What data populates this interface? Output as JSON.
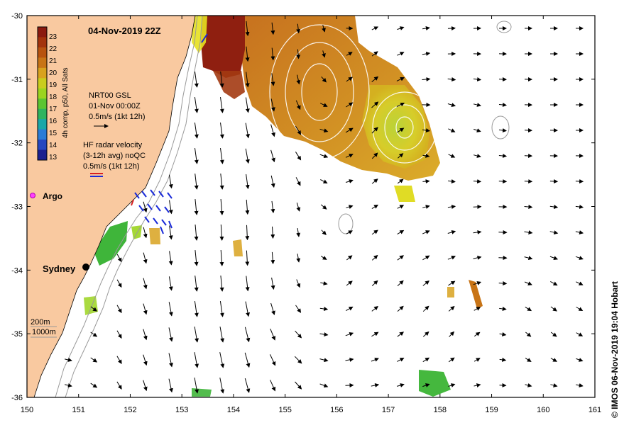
{
  "map": {
    "title": "04-Nov-2019 22Z",
    "credit": "© IMOS 06-Nov-2019 19:04 Hobart",
    "x_ticks": [
      "150",
      "151",
      "152",
      "153",
      "154",
      "155",
      "156",
      "157",
      "158",
      "159",
      "160",
      "161"
    ],
    "y_ticks": [
      "-30",
      "-31",
      "-32",
      "-33",
      "-34",
      "-35",
      "-36"
    ],
    "lon_range": [
      150,
      161
    ],
    "lat_range": [
      -36,
      -30
    ],
    "colors": {
      "land": "#f9c9a0",
      "ocean": "#ffffff",
      "frame": "#000000",
      "isobath": "#999999"
    }
  },
  "colorbar": {
    "label": "4h comp, p50, All Sats",
    "ticks": [
      "23",
      "22",
      "21",
      "20",
      "19",
      "18",
      "17",
      "16",
      "15",
      "14",
      "13"
    ],
    "colors": [
      "#8b1a0f",
      "#a3330c",
      "#b8530f",
      "#c87416",
      "#d8a21e",
      "#c9cc1d",
      "#9bd41f",
      "#5cc532",
      "#2fb35f",
      "#1aa7a8",
      "#2a7bd6",
      "#2547c0",
      "#1a1f8f"
    ]
  },
  "legend": {
    "gsl_title": "NRT00 GSL",
    "gsl_date": "01-Nov 00:00Z",
    "gsl_scale": "0.5m/s (1kt 12h)",
    "hf_title": "HF radar velocity",
    "hf_sub": "(3-12h avg) noQC",
    "hf_scale": "0.5m/s (1kt 12h)",
    "argo": "Argo",
    "isobath_200": "200m",
    "isobath_1000": "1000m"
  },
  "places": [
    {
      "name": "Sydney",
      "lon": 151.2,
      "lat": -33.87
    }
  ]
}
